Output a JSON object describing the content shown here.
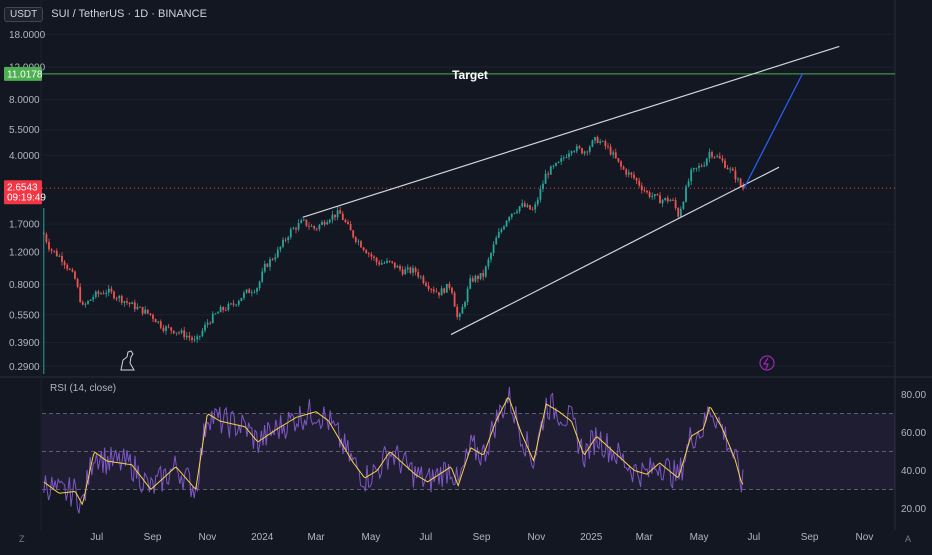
{
  "header": {
    "currency": "USDT",
    "symbol": "SUI / TetherUS · 1D · BINANCE"
  },
  "price_axis": {
    "ticks": [
      "18.0000",
      "12.0000",
      "8.0000",
      "5.5000",
      "4.0000",
      "2.6543",
      "1.7000",
      "1.2000",
      "0.8000",
      "0.5500",
      "0.3900",
      "0.2900"
    ],
    "target_tag": "11.0178",
    "current_price_tag": "2.6543",
    "countdown": "09:19:49"
  },
  "annotations": {
    "target_label": "Target"
  },
  "rsi_panel": {
    "title": "RSI (14, close)",
    "ticks": [
      "80.00",
      "60.00",
      "40.00",
      "20.00"
    ]
  },
  "time_axis": {
    "labels": [
      "Jul",
      "Sep",
      "Nov",
      "2024",
      "Mar",
      "May",
      "Jul",
      "Sep",
      "Nov",
      "2025",
      "Mar",
      "May",
      "Jul",
      "Sep",
      "Nov"
    ]
  },
  "chart_data": {
    "type": "candlestick",
    "title": "SUI / TetherUS · 1D · BINANCE",
    "price_scale": "log",
    "price_range": [
      0.27,
      21
    ],
    "x_range": [
      "2023-05-01",
      "2025-12-05"
    ],
    "candle_path": [
      [
        "2023-05-03",
        1.5
      ],
      [
        "2023-05-10",
        1.25
      ],
      [
        "2023-05-24",
        1.1
      ],
      [
        "2023-06-07",
        0.85
      ],
      [
        "2023-06-15",
        0.6
      ],
      [
        "2023-06-28",
        0.7
      ],
      [
        "2023-07-12",
        0.74
      ],
      [
        "2023-07-26",
        0.68
      ],
      [
        "2023-08-09",
        0.62
      ],
      [
        "2023-08-30",
        0.55
      ],
      [
        "2023-09-13",
        0.47
      ],
      [
        "2023-09-27",
        0.45
      ],
      [
        "2023-10-11",
        0.42
      ],
      [
        "2023-10-19",
        0.39
      ],
      [
        "2023-11-01",
        0.5
      ],
      [
        "2023-11-15",
        0.58
      ],
      [
        "2023-11-29",
        0.62
      ],
      [
        "2023-12-13",
        0.72
      ],
      [
        "2023-12-27",
        0.78
      ],
      [
        "2024-01-04",
        1.0
      ],
      [
        "2024-01-18",
        1.2
      ],
      [
        "2024-02-01",
        1.55
      ],
      [
        "2024-02-15",
        1.75
      ],
      [
        "2024-02-29",
        1.6
      ],
      [
        "2024-03-15",
        1.85
      ],
      [
        "2024-03-27",
        1.95
      ],
      [
        "2024-04-10",
        1.5
      ],
      [
        "2024-04-24",
        1.25
      ],
      [
        "2024-05-08",
        1.05
      ],
      [
        "2024-05-22",
        1.05
      ],
      [
        "2024-06-05",
        0.95
      ],
      [
        "2024-06-19",
        0.95
      ],
      [
        "2024-07-03",
        0.8
      ],
      [
        "2024-07-15",
        0.72
      ],
      [
        "2024-07-29",
        0.8
      ],
      [
        "2024-08-06",
        0.5
      ],
      [
        "2024-08-20",
        0.85
      ],
      [
        "2024-09-03",
        0.9
      ],
      [
        "2024-09-17",
        1.4
      ],
      [
        "2024-10-01",
        1.9
      ],
      [
        "2024-10-15",
        2.15
      ],
      [
        "2024-10-29",
        2.0
      ],
      [
        "2024-11-12",
        3.2
      ],
      [
        "2024-11-26",
        3.6
      ],
      [
        "2024-12-10",
        4.4
      ],
      [
        "2024-12-24",
        4.2
      ],
      [
        "2025-01-07",
        4.9
      ],
      [
        "2025-01-21",
        4.3
      ],
      [
        "2025-02-04",
        3.4
      ],
      [
        "2025-02-18",
        3.0
      ],
      [
        "2025-03-04",
        2.5
      ],
      [
        "2025-03-18",
        2.3
      ],
      [
        "2025-04-01",
        2.3
      ],
      [
        "2025-04-08",
        1.9
      ],
      [
        "2025-04-22",
        3.2
      ],
      [
        "2025-05-06",
        3.6
      ],
      [
        "2025-05-13",
        4.2
      ],
      [
        "2025-05-27",
        3.7
      ],
      [
        "2025-06-10",
        3.1
      ],
      [
        "2025-06-17",
        2.7
      ],
      [
        "2025-06-20",
        2.6543
      ]
    ],
    "current_price": 2.6543,
    "target_price": 11.0178,
    "pattern_lines": [
      {
        "name": "upper trendline",
        "start": [
          "2024-02-15",
          1.85
        ],
        "end": [
          "2025-10-04",
          15.5
        ]
      },
      {
        "name": "lower trendline",
        "start": [
          "2024-07-29",
          0.43
        ],
        "end": [
          "2025-07-29",
          3.45
        ]
      },
      {
        "name": "projected path",
        "start": [
          "2025-06-20",
          2.6543
        ],
        "end": [
          "2025-08-24",
          11.0178
        ]
      }
    ],
    "rsi": {
      "period": 14,
      "ylim": [
        15,
        85
      ],
      "bands": [
        70,
        50,
        30
      ],
      "path": [
        [
          "2023-05-03",
          34
        ],
        [
          "2023-05-20",
          28
        ],
        [
          "2023-06-07",
          29
        ],
        [
          "2023-06-15",
          22
        ],
        [
          "2023-06-28",
          50
        ],
        [
          "2023-07-12",
          45
        ],
        [
          "2023-08-09",
          43
        ],
        [
          "2023-08-30",
          30
        ],
        [
          "2023-09-27",
          42
        ],
        [
          "2023-10-19",
          30
        ],
        [
          "2023-11-01",
          70
        ],
        [
          "2023-11-15",
          66
        ],
        [
          "2023-12-13",
          63
        ],
        [
          "2023-12-27",
          55
        ],
        [
          "2024-01-18",
          62
        ],
        [
          "2024-02-08",
          68
        ],
        [
          "2024-03-01",
          71
        ],
        [
          "2024-03-15",
          66
        ],
        [
          "2024-04-10",
          45
        ],
        [
          "2024-04-24",
          36
        ],
        [
          "2024-05-08",
          40
        ],
        [
          "2024-05-22",
          50
        ],
        [
          "2024-06-19",
          38
        ],
        [
          "2024-07-03",
          34
        ],
        [
          "2024-07-29",
          42
        ],
        [
          "2024-08-06",
          32
        ],
        [
          "2024-08-20",
          52
        ],
        [
          "2024-09-03",
          48
        ],
        [
          "2024-09-17",
          66
        ],
        [
          "2024-10-01",
          79
        ],
        [
          "2024-10-15",
          60
        ],
        [
          "2024-10-29",
          45
        ],
        [
          "2024-11-12",
          75
        ],
        [
          "2024-11-26",
          71
        ],
        [
          "2024-12-10",
          66
        ],
        [
          "2024-12-24",
          48
        ],
        [
          "2025-01-07",
          58
        ],
        [
          "2025-01-21",
          52
        ],
        [
          "2025-02-04",
          46
        ],
        [
          "2025-02-18",
          40
        ],
        [
          "2025-03-04",
          38
        ],
        [
          "2025-03-18",
          44
        ],
        [
          "2025-04-08",
          36
        ],
        [
          "2025-04-22",
          58
        ],
        [
          "2025-05-06",
          62
        ],
        [
          "2025-05-13",
          74
        ],
        [
          "2025-05-27",
          62
        ],
        [
          "2025-06-10",
          46
        ],
        [
          "2025-06-17",
          34
        ],
        [
          "2025-06-20",
          32
        ]
      ]
    }
  }
}
